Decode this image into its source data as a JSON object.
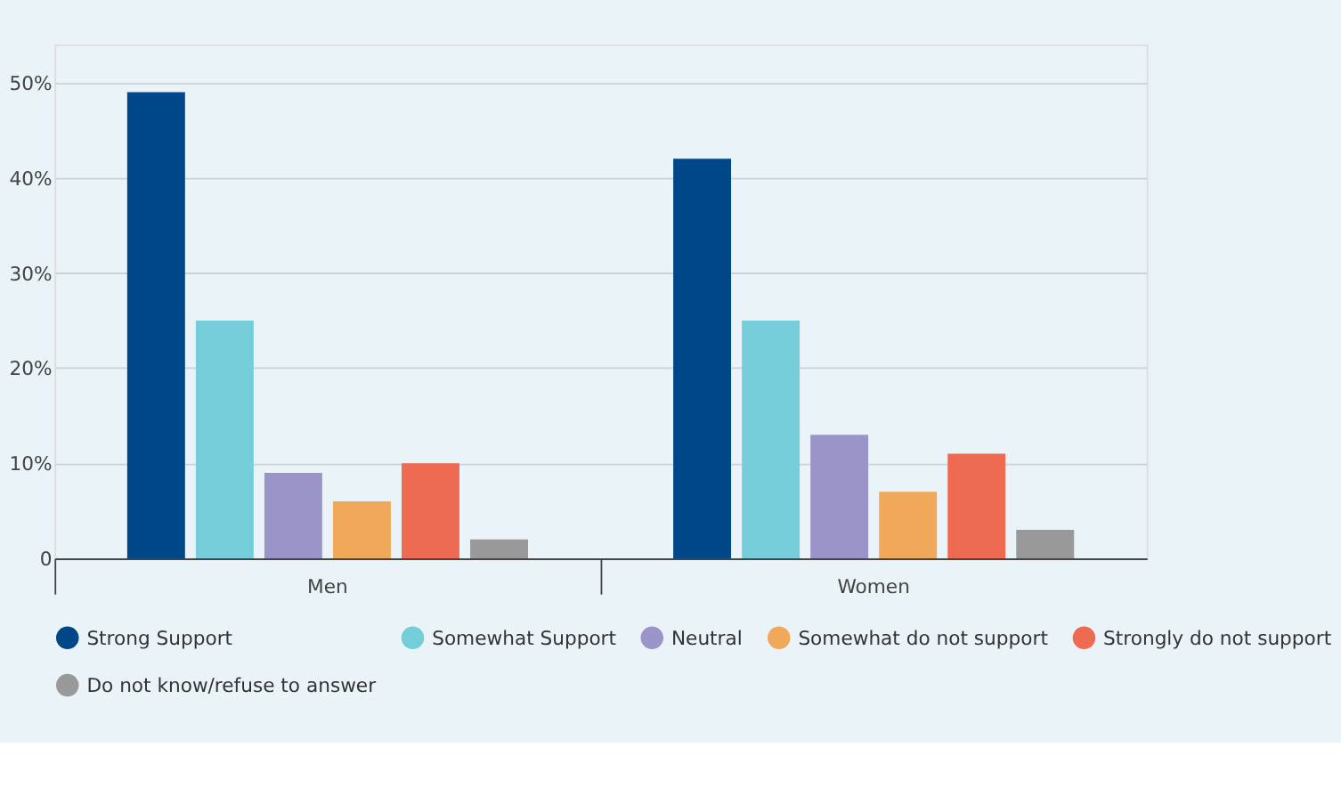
{
  "chart_data": {
    "type": "bar",
    "categories": [
      "Men",
      "Women"
    ],
    "series": [
      {
        "name": "Strong Support",
        "color": "#00478a",
        "values": [
          49,
          42
        ]
      },
      {
        "name": "Somewhat Support",
        "color": "#74cdd9",
        "values": [
          25,
          25
        ]
      },
      {
        "name": "Neutral",
        "color": "#9b94c8",
        "values": [
          9,
          13
        ]
      },
      {
        "name": "Somewhat do not support",
        "color": "#f0a95a",
        "values": [
          6,
          7
        ]
      },
      {
        "name": "Strongly do not support",
        "color": "#ee6a50",
        "values": [
          10,
          11
        ]
      },
      {
        "name": "Do not know/refuse to answer",
        "color": "#999999",
        "values": [
          2,
          3
        ]
      }
    ],
    "ylim": [
      0,
      54
    ],
    "yticks": [
      0,
      {
        "value": 10,
        "label": "10%"
      },
      {
        "value": 20,
        "label": "20%"
      },
      {
        "value": 30,
        "label": "30%"
      },
      {
        "value": 40,
        "label": "40%"
      },
      {
        "value": 50,
        "label": "50%"
      }
    ],
    "grid": "y",
    "legend": "bottom"
  }
}
